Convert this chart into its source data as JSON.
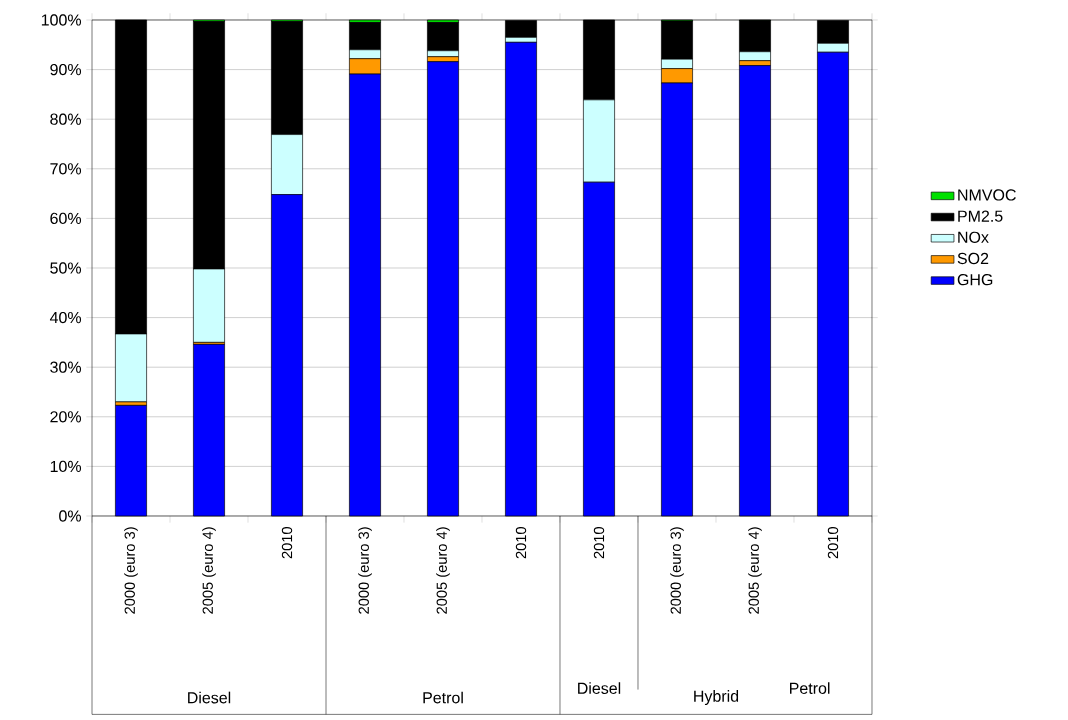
{
  "chart_data": {
    "type": "bar",
    "stacked": true,
    "categories": [
      "2000 (euro 3)",
      "2005 (euro 4)",
      "2010",
      "2000 (euro 3)",
      "2005 (euro 4)",
      "2010",
      "2010",
      "2000 (euro 3)",
      "2005 (euro 4)",
      "2010"
    ],
    "series": [
      {
        "name": "GHG",
        "color": "#0000ff",
        "values": [
          22.3,
          34.6,
          64.8,
          89.1,
          91.6,
          95.5,
          67.3,
          87.3,
          90.8,
          93.5
        ]
      },
      {
        "name": "SO2",
        "color": "#ff9900",
        "values": [
          0.7,
          0.4,
          0,
          3.1,
          1.0,
          null,
          0,
          2.9,
          1.0,
          null
        ]
      },
      {
        "name": "NOx",
        "color": "#ccffff",
        "values": [
          13.7,
          14.8,
          12.1,
          1.8,
          1.2,
          1.0,
          16.6,
          1.9,
          1.8,
          1.8
        ]
      },
      {
        "name": "PM2.5",
        "color": "#000000",
        "values": [
          63.3,
          49.9,
          22.8,
          5.5,
          5.7,
          3.4,
          16.1,
          7.7,
          6.3,
          4.6
        ]
      },
      {
        "name": "NMVOC",
        "color": "#00e000",
        "values": [
          0,
          0.3,
          0.3,
          0.5,
          0.5,
          0,
          0,
          0.2,
          0.1,
          0
        ]
      }
    ],
    "ylim": [
      0,
      100
    ],
    "yticks": [
      {
        "value": 0,
        "label": "0%"
      },
      {
        "value": 10,
        "label": "10%"
      },
      {
        "value": 20,
        "label": "20%"
      },
      {
        "value": 30,
        "label": "30%"
      },
      {
        "value": 40,
        "label": "40%"
      },
      {
        "value": 50,
        "label": "50%"
      },
      {
        "value": 60,
        "label": "60%"
      },
      {
        "value": 70,
        "label": "70%"
      },
      {
        "value": 80,
        "label": "80%"
      },
      {
        "value": 90,
        "label": "90%"
      },
      {
        "value": 100,
        "label": "100%"
      }
    ],
    "grid": "y",
    "legend": "right",
    "annotations": [
      "Diesel",
      "Petrol",
      "Diesel",
      "Petrol",
      "Hybrid"
    ]
  }
}
